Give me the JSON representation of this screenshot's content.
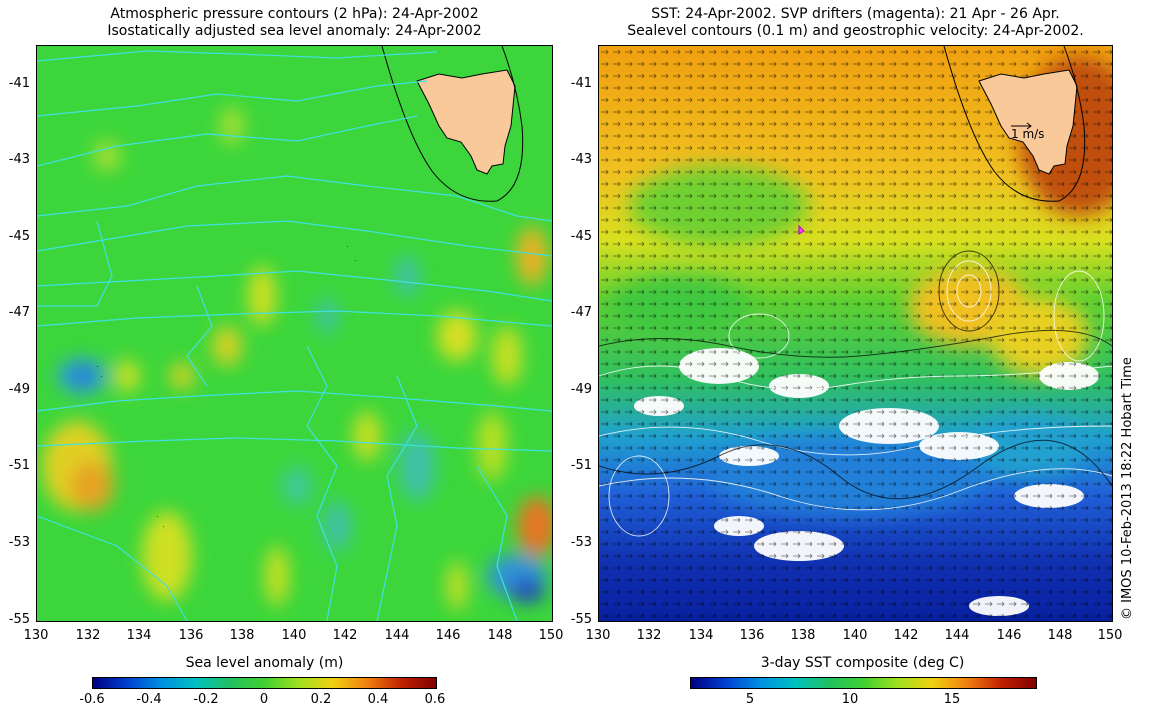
{
  "left_panel": {
    "title_line1": "Atmospheric pressure contours (2 hPa): 24-Apr-2002",
    "title_line2": "Isostatically adjusted sea level anomaly: 24-Apr-2002",
    "colorbar_title": "Sea level anomaly (m)",
    "colorbar_ticks": [
      "-0.6",
      "-0.4",
      "-0.2",
      "0",
      "0.2",
      "0.4",
      "0.6"
    ]
  },
  "right_panel": {
    "title_line1": "SST: 24-Apr-2002. SVP drifters (magenta): 21 Apr - 26 Apr.",
    "title_line2": "Sealevel contours (0.1 m) and geostrophic velocity: 24-Apr-2002.",
    "colorbar_title": "3-day SST composite (deg C)",
    "colorbar_ticks": [
      "5",
      "10",
      "15"
    ],
    "velocity_scale_label": "1 m/s"
  },
  "axes": {
    "lon_ticks": [
      "130",
      "132",
      "134",
      "136",
      "138",
      "140",
      "142",
      "144",
      "146",
      "148",
      "150"
    ],
    "lat_ticks": [
      "-41",
      "-43",
      "-45",
      "-47",
      "-49",
      "-51",
      "-53",
      "-55"
    ]
  },
  "credit": "© IMOS 10-Feb-2013 18:22 Hobart Time",
  "colors": {
    "land": "#f9c99a",
    "ocean_green": "#3fd23a",
    "contour_cyan": "#40e0e0"
  }
}
